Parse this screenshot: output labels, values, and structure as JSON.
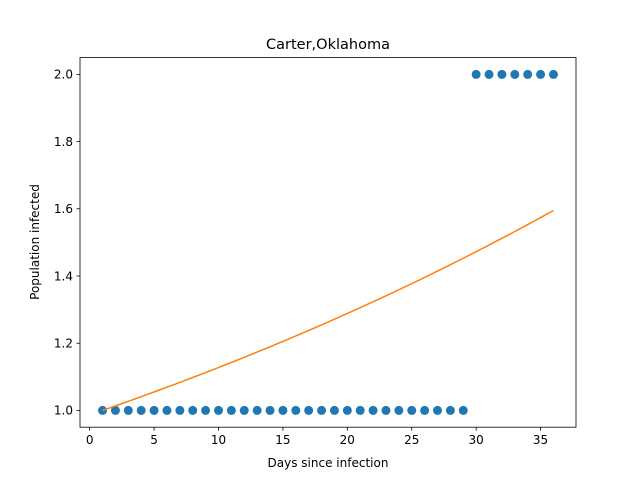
{
  "chart_data": {
    "type": "scatter",
    "title": "Carter,Oklahoma",
    "xlabel": "Days since infection",
    "ylabel": "Population infected",
    "xlim": [
      -0.75,
      37.75
    ],
    "ylim": [
      0.95,
      2.05
    ],
    "xticks": [
      0,
      5,
      10,
      15,
      20,
      25,
      30,
      35
    ],
    "xtick_labels": [
      "0",
      "5",
      "10",
      "15",
      "20",
      "25",
      "30",
      "35"
    ],
    "yticks": [
      1.0,
      1.2,
      1.4,
      1.6,
      1.8,
      2.0
    ],
    "ytick_labels": [
      "1.0",
      "1.2",
      "1.4",
      "1.6",
      "1.8",
      "2.0"
    ],
    "grid": false,
    "series": [
      {
        "kind": "scatter",
        "color": "#1f77b4",
        "x": [
          1,
          2,
          3,
          4,
          5,
          6,
          7,
          8,
          9,
          10,
          11,
          12,
          13,
          14,
          15,
          16,
          17,
          18,
          19,
          20,
          21,
          22,
          23,
          24,
          25,
          26,
          27,
          28,
          29,
          30,
          31,
          32,
          33,
          34,
          35,
          36
        ],
        "y": [
          1,
          1,
          1,
          1,
          1,
          1,
          1,
          1,
          1,
          1,
          1,
          1,
          1,
          1,
          1,
          1,
          1,
          1,
          1,
          1,
          1,
          1,
          1,
          1,
          1,
          1,
          1,
          1,
          1,
          2,
          2,
          2,
          2,
          2,
          2,
          2
        ]
      },
      {
        "kind": "line",
        "color": "#ff7f0e",
        "x": [
          1,
          36
        ],
        "y": [
          1.0,
          1.595
        ],
        "curve": "exponential"
      }
    ]
  }
}
